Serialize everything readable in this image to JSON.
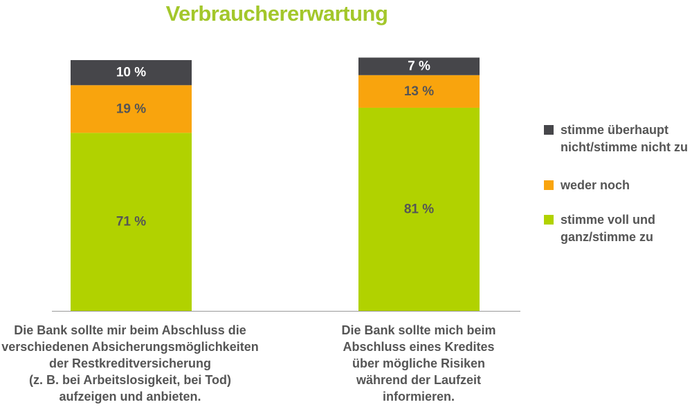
{
  "chart_data": {
    "type": "bar",
    "stacked": true,
    "percent": true,
    "title": "Verbrauchererwartung",
    "ylim": [
      0,
      100
    ],
    "grid": false,
    "legend_position": "right",
    "value_suffix": " %",
    "categories": [
      [
        "Die Bank sollte mir beim Abschluss die",
        "verschiedenen Absicherungsmöglichkeiten",
        "der Restkreditversicherung",
        "(z. B. bei Arbeitslosigkeit, bei Tod)",
        "aufzeigen und anbieten."
      ],
      [
        "Die Bank sollte mich beim",
        "Abschluss eines Kredites",
        "über mögliche Risiken",
        "während der Laufzeit",
        "informieren."
      ]
    ],
    "series": [
      {
        "name": [
          "stimme voll und",
          "ganz/stimme zu"
        ],
        "color": "#b1d200",
        "values": [
          71,
          81
        ]
      },
      {
        "name": [
          "weder noch"
        ],
        "color": "#f9a40d",
        "values": [
          19,
          13
        ]
      },
      {
        "name": [
          "stimme überhaupt",
          "nicht/stimme nicht zu"
        ],
        "color": "#46464a",
        "values": [
          10,
          7
        ]
      }
    ],
    "legend_order": [
      2,
      1,
      0
    ]
  }
}
